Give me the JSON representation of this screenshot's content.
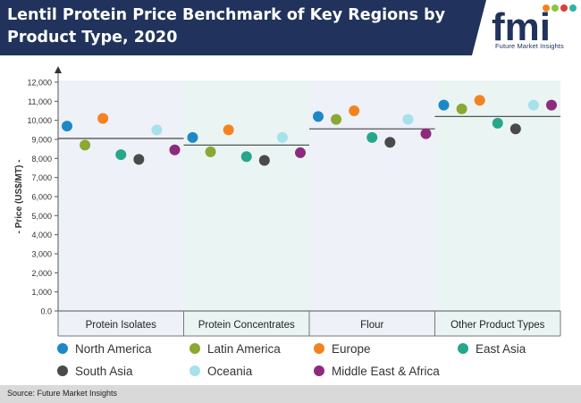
{
  "header": {
    "title": "Lentil Protein Price Benchmark of Key Regions by Product Type, 2020"
  },
  "logo": {
    "letters": "fmi",
    "tagline": "Future Market Insights",
    "colors": {
      "navy": "#21335c",
      "orange": "#f58220",
      "green": "#8cc63e",
      "red": "#e23b3b",
      "teal": "#2bb5a3"
    }
  },
  "chart_data": {
    "type": "scatter",
    "title": "",
    "ylabel": "- Price (US$/MT) -",
    "xlabel": "",
    "ylim": [
      0,
      12000
    ],
    "yticks": [
      "0.0",
      "1,000",
      "2,000",
      "3,000",
      "4,000",
      "5,000",
      "6,000",
      "7,000",
      "8,000",
      "9,000",
      "10,000",
      "11,000",
      "12,000"
    ],
    "categories": [
      "Protein Isolates",
      "Protein Concentrates",
      "Flour",
      "Other Product Types"
    ],
    "series": [
      {
        "name": "North America",
        "color": "#1e88c7",
        "values": [
          9700,
          9100,
          10200,
          10800
        ]
      },
      {
        "name": "Latin America",
        "color": "#8aa832",
        "values": [
          8700,
          8350,
          10050,
          10600
        ]
      },
      {
        "name": "Europe",
        "color": "#f58220",
        "values": [
          10100,
          9500,
          10500,
          11050
        ]
      },
      {
        "name": "East Asia",
        "color": "#26a78a",
        "values": [
          8200,
          8100,
          9100,
          9850
        ]
      },
      {
        "name": "South Asia",
        "color": "#4a4a4a",
        "values": [
          7950,
          7900,
          8850,
          9550
        ]
      },
      {
        "name": "Oceania",
        "color": "#a6e1ec",
        "values": [
          9500,
          9100,
          10050,
          10800
        ]
      },
      {
        "name": "Middle East & Africa",
        "color": "#8e2a7e",
        "values": [
          8450,
          8300,
          9300,
          10800
        ]
      }
    ],
    "averages": [
      9050,
      8700,
      9550,
      10200
    ],
    "average_line_color": "#555555",
    "band_colors": [
      "#eef1f8",
      "#eaf5f3"
    ],
    "grid": false,
    "legend_position": "bottom"
  },
  "footer": {
    "source": "Source: Future Market Insights"
  }
}
